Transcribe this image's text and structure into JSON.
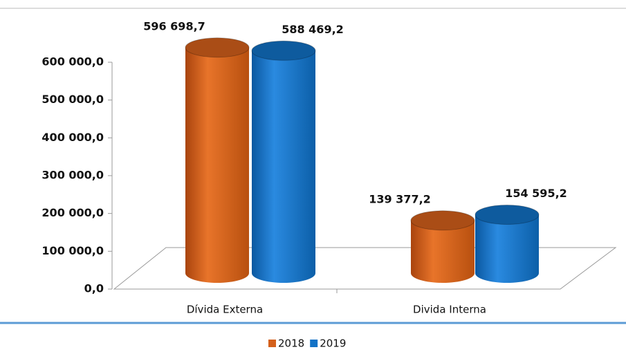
{
  "chart_data": {
    "type": "bar3d",
    "categories": [
      "Dívida Externa",
      "Divida Interna"
    ],
    "series": [
      {
        "name": "2018",
        "color": "#d4601b",
        "values": [
          596698.7,
          139377.2
        ],
        "value_labels": [
          "596 698,7",
          "139 377,2"
        ]
      },
      {
        "name": "2019",
        "color": "#1272c6",
        "values": [
          588469.2,
          154595.2
        ],
        "value_labels": [
          "588 469,2",
          "154 595,2"
        ]
      }
    ],
    "ylim": [
      0,
      600000
    ],
    "yticks": [
      {
        "value": 0,
        "label": "0,0"
      },
      {
        "value": 100000,
        "label": "100 000,0"
      },
      {
        "value": 200000,
        "label": "200 000,0"
      },
      {
        "value": 300000,
        "label": "300 000,0"
      },
      {
        "value": 400000,
        "label": "400 000,0"
      },
      {
        "value": 500000,
        "label": "500 000,0"
      },
      {
        "value": 600000,
        "label": "600 000,0"
      }
    ],
    "legend": "bottom"
  }
}
